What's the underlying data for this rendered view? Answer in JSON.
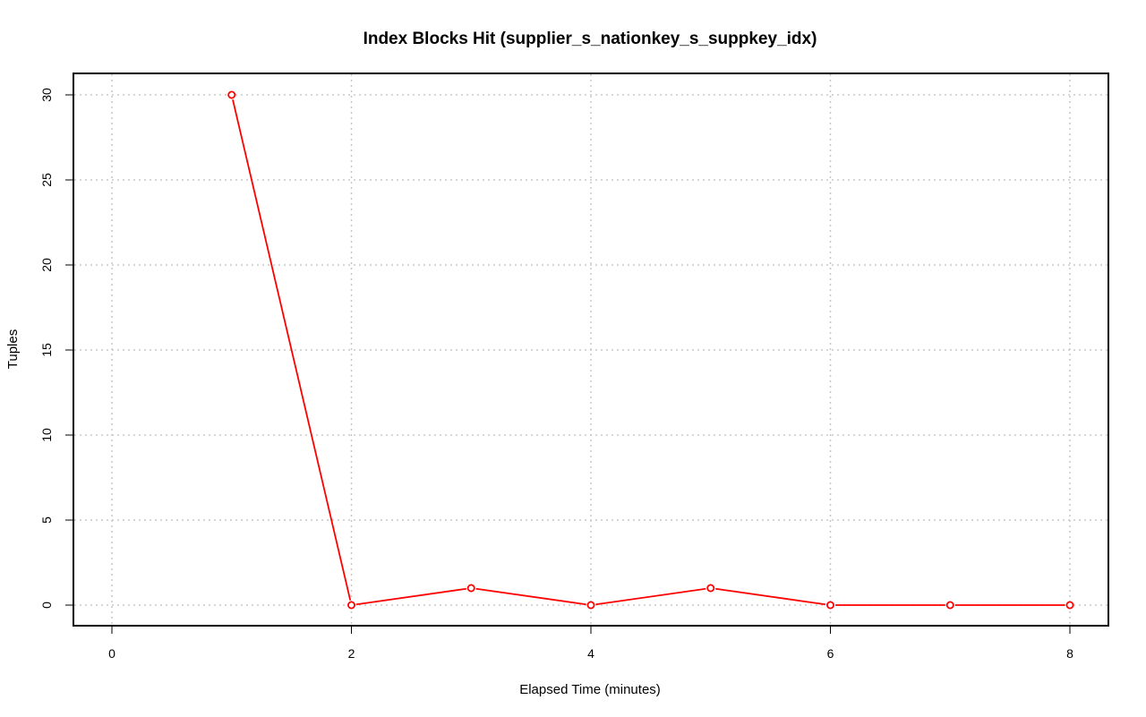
{
  "chart_data": {
    "type": "line",
    "title": "Index Blocks Hit (supplier_s_nationkey_s_suppkey_idx)",
    "xlabel": "Elapsed Time (minutes)",
    "ylabel": "Tuples",
    "xlim": [
      0,
      8
    ],
    "ylim": [
      0,
      30
    ],
    "x_ticks": [
      0,
      2,
      4,
      6,
      8
    ],
    "y_ticks": [
      0,
      5,
      10,
      15,
      20,
      25,
      30
    ],
    "grid": true,
    "series": [
      {
        "color": "#ff0000",
        "x": [
          1,
          2,
          3,
          4,
          5,
          6,
          7,
          8
        ],
        "y": [
          30,
          0,
          1,
          0,
          1,
          0,
          0,
          0
        ]
      }
    ]
  }
}
